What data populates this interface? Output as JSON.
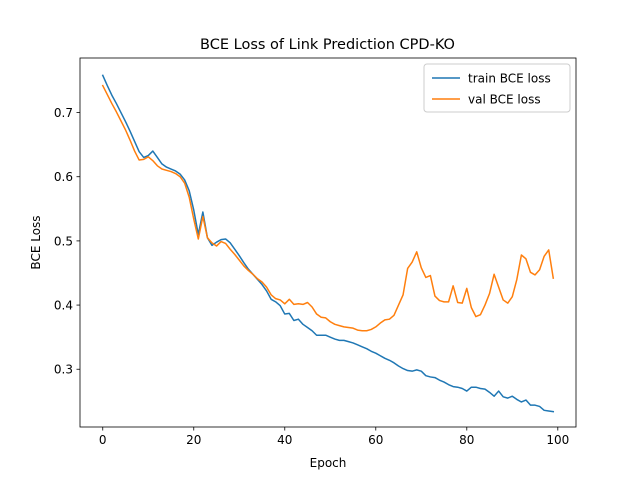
{
  "chart_data": {
    "type": "line",
    "title": "BCE Loss of Link Prediction CPD-KO",
    "xlabel": "Epoch",
    "ylabel": "BCE Loss",
    "xlim": [
      -5,
      104
    ],
    "ylim": [
      0.21,
      0.785
    ],
    "xticks": [
      0,
      20,
      40,
      60,
      80,
      100
    ],
    "yticks": [
      0.3,
      0.4,
      0.5,
      0.6,
      0.7
    ],
    "xtick_labels": [
      "0",
      "20",
      "40",
      "60",
      "80",
      "100"
    ],
    "ytick_labels": [
      "0.3",
      "0.4",
      "0.5",
      "0.6",
      "0.7"
    ],
    "legend_position": "top-right",
    "grid": false,
    "series": [
      {
        "name": "train BCE loss",
        "color": "#1f77b4",
        "x": [
          0,
          1,
          2,
          3,
          4,
          5,
          6,
          7,
          8,
          9,
          10,
          11,
          12,
          13,
          14,
          15,
          16,
          17,
          18,
          19,
          20,
          21,
          22,
          23,
          24,
          25,
          26,
          27,
          28,
          29,
          30,
          31,
          32,
          33,
          34,
          35,
          36,
          37,
          38,
          39,
          40,
          41,
          42,
          43,
          44,
          45,
          46,
          47,
          48,
          49,
          50,
          51,
          52,
          53,
          54,
          55,
          56,
          57,
          58,
          59,
          60,
          61,
          62,
          63,
          64,
          65,
          66,
          67,
          68,
          69,
          70,
          71,
          72,
          73,
          74,
          75,
          76,
          77,
          78,
          79,
          80,
          81,
          82,
          83,
          84,
          85,
          86,
          87,
          88,
          89,
          90,
          91,
          92,
          93,
          94,
          95,
          96,
          97,
          98,
          99
        ],
        "y": [
          0.758,
          0.742,
          0.727,
          0.714,
          0.7,
          0.686,
          0.671,
          0.655,
          0.639,
          0.63,
          0.633,
          0.64,
          0.63,
          0.62,
          0.615,
          0.612,
          0.609,
          0.604,
          0.595,
          0.578,
          0.548,
          0.51,
          0.545,
          0.505,
          0.493,
          0.498,
          0.502,
          0.503,
          0.497,
          0.487,
          0.477,
          0.466,
          0.456,
          0.448,
          0.44,
          0.432,
          0.422,
          0.409,
          0.405,
          0.399,
          0.386,
          0.387,
          0.376,
          0.378,
          0.37,
          0.365,
          0.36,
          0.353,
          0.353,
          0.353,
          0.35,
          0.347,
          0.345,
          0.345,
          0.343,
          0.341,
          0.338,
          0.335,
          0.332,
          0.328,
          0.325,
          0.321,
          0.317,
          0.314,
          0.31,
          0.305,
          0.301,
          0.298,
          0.297,
          0.299,
          0.297,
          0.29,
          0.288,
          0.287,
          0.283,
          0.28,
          0.276,
          0.273,
          0.272,
          0.27,
          0.266,
          0.272,
          0.272,
          0.27,
          0.269,
          0.264,
          0.258,
          0.266,
          0.257,
          0.255,
          0.258,
          0.253,
          0.249,
          0.252,
          0.244,
          0.244,
          0.242,
          0.236,
          0.235,
          0.234
        ]
      },
      {
        "name": "val BCE loss",
        "color": "#ff7f0e",
        "x": [
          0,
          1,
          2,
          3,
          4,
          5,
          6,
          7,
          8,
          9,
          10,
          11,
          12,
          13,
          14,
          15,
          16,
          17,
          18,
          19,
          20,
          21,
          22,
          23,
          24,
          25,
          26,
          27,
          28,
          29,
          30,
          31,
          32,
          33,
          34,
          35,
          36,
          37,
          38,
          39,
          40,
          41,
          42,
          43,
          44,
          45,
          46,
          47,
          48,
          49,
          50,
          51,
          52,
          53,
          54,
          55,
          56,
          57,
          58,
          59,
          60,
          61,
          62,
          63,
          64,
          65,
          66,
          67,
          68,
          69,
          70,
          71,
          72,
          73,
          74,
          75,
          76,
          77,
          78,
          79,
          80,
          81,
          82,
          83,
          84,
          85,
          86,
          87,
          88,
          89,
          90,
          91,
          92,
          93,
          94,
          95,
          96,
          97,
          98,
          99
        ],
        "y": [
          0.742,
          0.728,
          0.714,
          0.701,
          0.687,
          0.673,
          0.657,
          0.64,
          0.626,
          0.627,
          0.631,
          0.625,
          0.617,
          0.612,
          0.61,
          0.608,
          0.605,
          0.6,
          0.59,
          0.568,
          0.534,
          0.503,
          0.538,
          0.505,
          0.497,
          0.492,
          0.499,
          0.496,
          0.487,
          0.479,
          0.47,
          0.461,
          0.454,
          0.448,
          0.441,
          0.436,
          0.428,
          0.416,
          0.41,
          0.408,
          0.402,
          0.409,
          0.401,
          0.402,
          0.401,
          0.404,
          0.397,
          0.386,
          0.381,
          0.38,
          0.374,
          0.37,
          0.368,
          0.366,
          0.365,
          0.364,
          0.361,
          0.36,
          0.36,
          0.362,
          0.366,
          0.372,
          0.377,
          0.378,
          0.384,
          0.4,
          0.416,
          0.457,
          0.467,
          0.483,
          0.458,
          0.443,
          0.446,
          0.414,
          0.407,
          0.405,
          0.405,
          0.43,
          0.404,
          0.403,
          0.426,
          0.396,
          0.382,
          0.385,
          0.4,
          0.418,
          0.448,
          0.428,
          0.408,
          0.403,
          0.413,
          0.44,
          0.478,
          0.472,
          0.451,
          0.447,
          0.455,
          0.476,
          0.486,
          0.442
        ]
      }
    ]
  }
}
